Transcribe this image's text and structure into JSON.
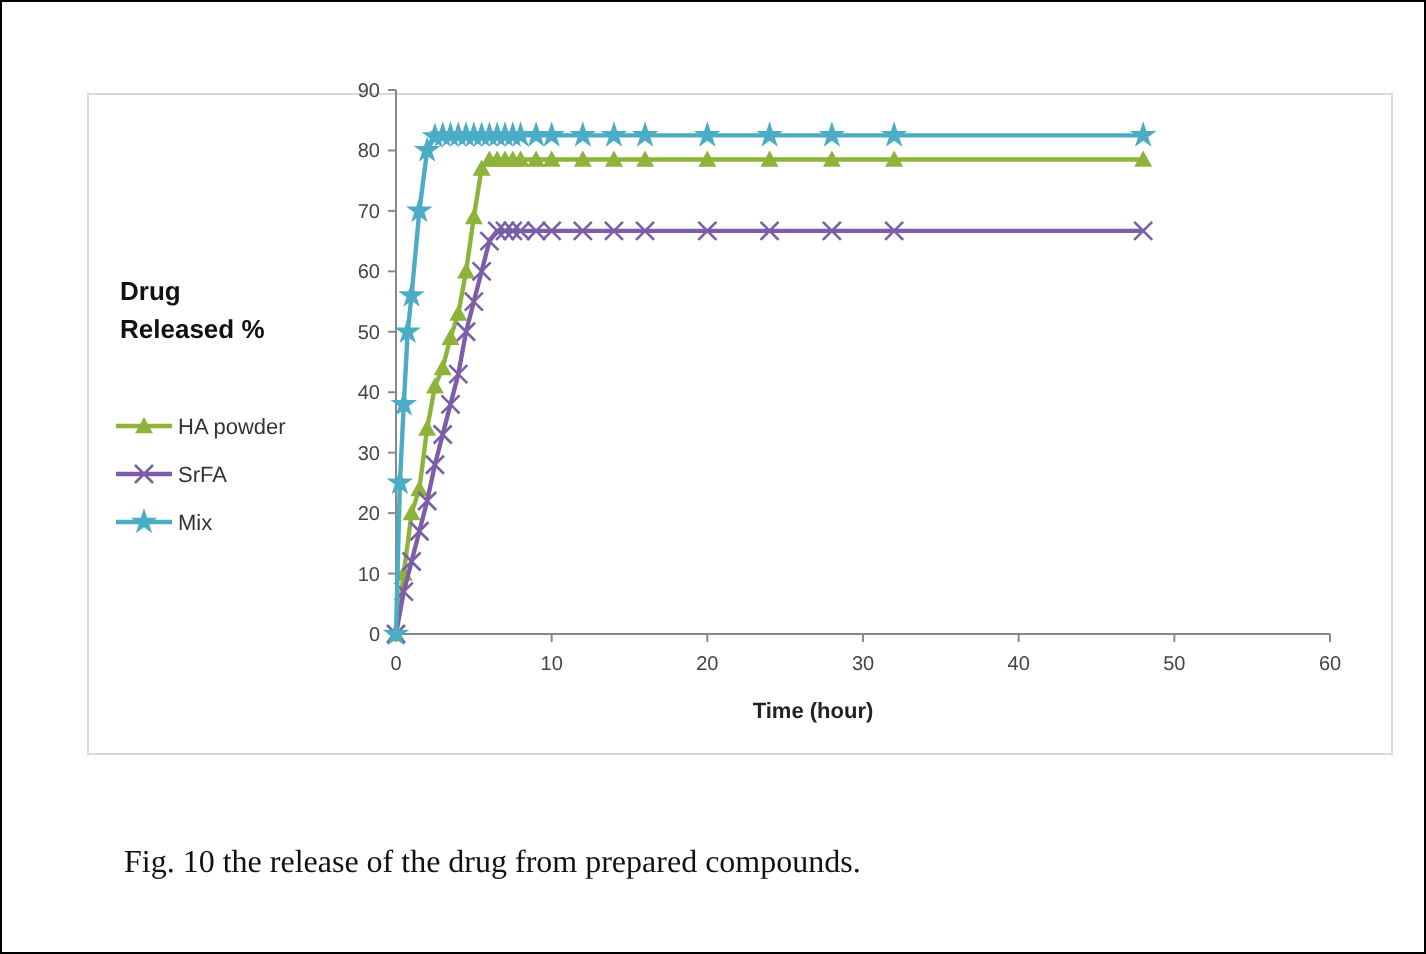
{
  "chart_data": {
    "type": "line",
    "ylabel": "Drug Released %",
    "xlabel": "Time (hour)",
    "xlim": [
      0,
      60
    ],
    "xticks": [
      0,
      10,
      20,
      30,
      40,
      50,
      60
    ],
    "ylim": [
      0,
      90
    ],
    "yticks": [
      0,
      10,
      20,
      30,
      40,
      50,
      60,
      70,
      80,
      90
    ],
    "grid": false,
    "legend": "left",
    "line_style": "solid",
    "series": [
      {
        "name": "HA powder",
        "color": "#8db33a",
        "marker": "triangle",
        "x": [
          0,
          0.5,
          1,
          1.5,
          2,
          2.5,
          3,
          3.5,
          4,
          4.5,
          5,
          5.5,
          6,
          6.5,
          7,
          7.5,
          8,
          9,
          10,
          12,
          14,
          16,
          20,
          24,
          28,
          32,
          48
        ],
        "values": [
          0,
          10,
          20,
          24,
          34,
          41,
          44,
          49,
          53,
          60,
          69,
          77,
          78.5,
          78.5,
          78.5,
          78.5,
          78.5,
          78.5,
          78.5,
          78.5,
          78.5,
          78.5,
          78.5,
          78.5,
          78.5,
          78.5,
          78.5
        ]
      },
      {
        "name": "SrFA",
        "color": "#7b5ea7",
        "marker": "cross",
        "x": [
          0,
          0.5,
          1,
          1.5,
          2,
          2.5,
          3,
          3.5,
          4,
          4.5,
          5,
          5.5,
          6,
          6.5,
          7,
          7.5,
          8,
          9,
          10,
          12,
          14,
          16,
          20,
          24,
          28,
          32,
          48
        ],
        "values": [
          0,
          7,
          12,
          17,
          22,
          28,
          33,
          38,
          43,
          50,
          55,
          60,
          65,
          66.7,
          66.7,
          66.7,
          66.7,
          66.7,
          66.7,
          66.7,
          66.7,
          66.7,
          66.7,
          66.7,
          66.7,
          66.7,
          66.7
        ]
      },
      {
        "name": "Mix",
        "color": "#4bacc6",
        "marker": "star",
        "x": [
          0,
          0.25,
          0.5,
          0.75,
          1,
          1.5,
          2,
          2.5,
          3,
          3.5,
          4,
          4.5,
          5,
          5.5,
          6,
          6.5,
          7,
          7.5,
          8,
          9,
          10,
          12,
          14,
          16,
          20,
          24,
          28,
          32,
          48
        ],
        "values": [
          0,
          25,
          38,
          50,
          56,
          70,
          80,
          82.3,
          82.5,
          82.5,
          82.5,
          82.5,
          82.5,
          82.5,
          82.5,
          82.5,
          82.5,
          82.5,
          82.5,
          82.5,
          82.5,
          82.5,
          82.5,
          82.5,
          82.5,
          82.5,
          82.5,
          82.5,
          82.5
        ]
      }
    ],
    "annotations": [
      "Fig. 10 the release of the drug from prepared compounds."
    ]
  }
}
